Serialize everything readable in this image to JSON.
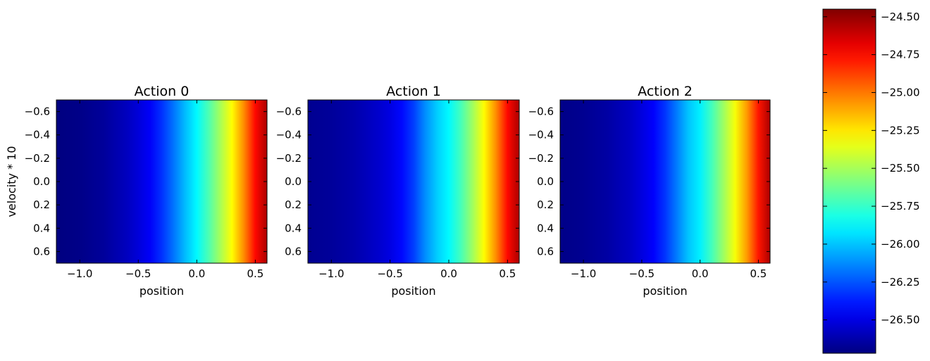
{
  "chart_data": {
    "type": "heatmap",
    "colormap": "jet",
    "panels": [
      {
        "title": "Action 0",
        "xlabel": "position",
        "ylabel": "velocity * 10",
        "xlim": [
          -1.2,
          0.6
        ],
        "ylim": [
          -0.7,
          0.7
        ],
        "y_inverted": true,
        "xticks": [
          "−1.0",
          "−0.5",
          "0.0",
          "0.5"
        ],
        "xtick_values": [
          -1.0,
          -0.5,
          0.0,
          0.5
        ],
        "yticks": [
          "−0.6",
          "−0.4",
          "−0.2",
          "0.0",
          "0.2",
          "0.4",
          "0.6"
        ],
        "ytick_values": [
          -0.6,
          -0.4,
          -0.2,
          0.0,
          0.2,
          0.4,
          0.6
        ],
        "profile_x": [
          -1.2,
          -1.0,
          -0.8,
          -0.6,
          -0.5,
          -0.4,
          -0.3,
          -0.2,
          -0.1,
          0.0,
          0.1,
          0.2,
          0.3,
          0.4,
          0.5,
          0.6
        ],
        "profile_values": [
          -26.72,
          -26.7,
          -26.66,
          -26.58,
          -26.52,
          -26.45,
          -26.33,
          -26.18,
          -26.02,
          -25.88,
          -25.7,
          -25.5,
          -25.3,
          -25.05,
          -24.75,
          -24.55
        ]
      },
      {
        "title": "Action 1",
        "xlabel": "position",
        "ylabel": "",
        "xlim": [
          -1.2,
          0.6
        ],
        "ylim": [
          -0.7,
          0.7
        ],
        "y_inverted": true,
        "xticks": [
          "−1.0",
          "−0.5",
          "0.0",
          "0.5"
        ],
        "xtick_values": [
          -1.0,
          -0.5,
          0.0,
          0.5
        ],
        "yticks": [
          "−0.6",
          "−0.4",
          "−0.2",
          "0.0",
          "0.2",
          "0.4",
          "0.6"
        ],
        "ytick_values": [
          -0.6,
          -0.4,
          -0.2,
          0.0,
          0.2,
          0.4,
          0.6
        ],
        "profile_x": [
          -1.2,
          -1.0,
          -0.8,
          -0.6,
          -0.5,
          -0.4,
          -0.3,
          -0.2,
          -0.1,
          0.0,
          0.1,
          0.2,
          0.3,
          0.4,
          0.5,
          0.6
        ],
        "profile_values": [
          -26.68,
          -26.66,
          -26.62,
          -26.55,
          -26.5,
          -26.42,
          -26.3,
          -26.12,
          -25.98,
          -25.88,
          -25.72,
          -25.52,
          -25.3,
          -25.05,
          -24.75,
          -24.55
        ]
      },
      {
        "title": "Action 2",
        "xlabel": "position",
        "ylabel": "",
        "xlim": [
          -1.2,
          0.6
        ],
        "ylim": [
          -0.7,
          0.7
        ],
        "y_inverted": true,
        "xticks": [
          "−1.0",
          "−0.5",
          "0.0",
          "0.5"
        ],
        "xtick_values": [
          -1.0,
          -0.5,
          0.0,
          0.5
        ],
        "yticks": [
          "−0.6",
          "−0.4",
          "−0.2",
          "0.0",
          "0.2",
          "0.4",
          "0.6"
        ],
        "ytick_values": [
          -0.6,
          -0.4,
          -0.2,
          0.0,
          0.2,
          0.4,
          0.6
        ],
        "profile_x": [
          -1.2,
          -1.0,
          -0.8,
          -0.6,
          -0.5,
          -0.4,
          -0.3,
          -0.2,
          -0.1,
          0.0,
          0.1,
          0.2,
          0.3,
          0.4,
          0.5,
          0.6
        ],
        "profile_values": [
          -26.7,
          -26.68,
          -26.64,
          -26.57,
          -26.51,
          -26.44,
          -26.32,
          -26.16,
          -26.0,
          -25.9,
          -25.72,
          -25.52,
          -25.32,
          -25.08,
          -24.78,
          -24.55
        ]
      }
    ],
    "colorbar": {
      "vmin": -26.72,
      "vmax": -24.45,
      "ticks": [
        "−24.50",
        "−24.75",
        "−25.00",
        "−25.25",
        "−25.50",
        "−25.75",
        "−26.00",
        "−26.25",
        "−26.50"
      ],
      "tick_values": [
        -24.5,
        -24.75,
        -25.0,
        -25.25,
        -25.5,
        -25.75,
        -26.0,
        -26.25,
        -26.5
      ]
    }
  }
}
